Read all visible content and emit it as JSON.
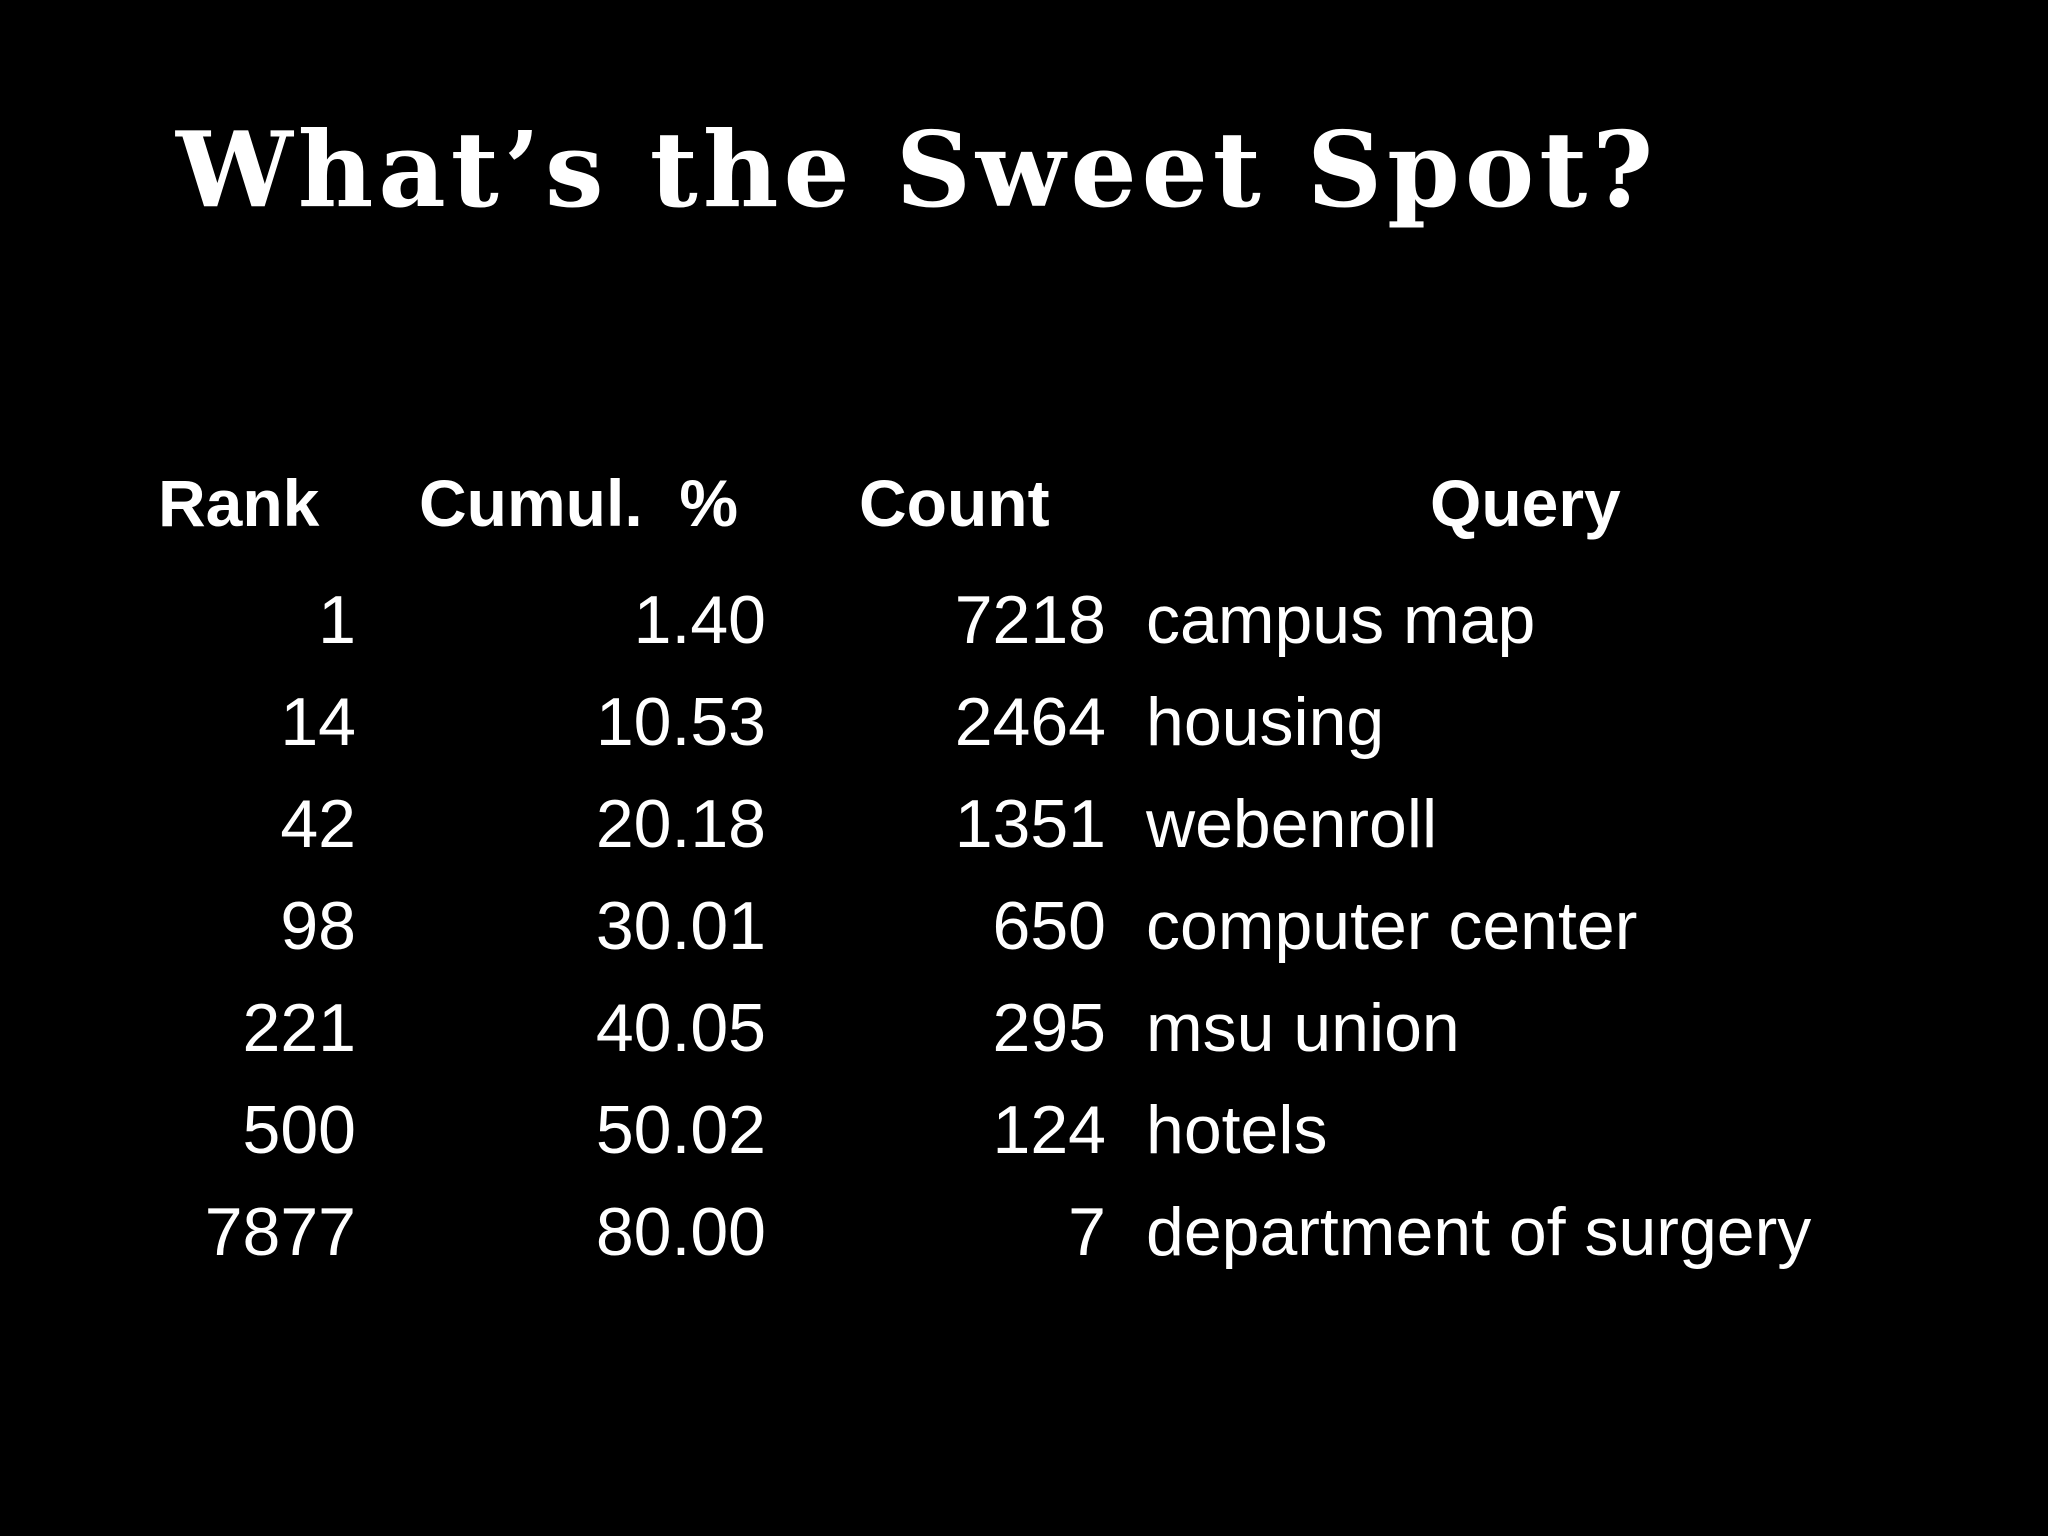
{
  "slide": {
    "title": "What’s the Sweet Spot?"
  },
  "table": {
    "headers": {
      "rank": "Rank",
      "cumul": "Cumul.  %",
      "count": "Count",
      "query": "Query"
    },
    "rows": [
      {
        "rank": "1",
        "cumul": "1.40",
        "count": "7218",
        "query": "campus map"
      },
      {
        "rank": "14",
        "cumul": "10.53",
        "count": "2464",
        "query": "housing"
      },
      {
        "rank": "42",
        "cumul": "20.18",
        "count": "1351",
        "query": "webenroll"
      },
      {
        "rank": "98",
        "cumul": "30.01",
        "count": "650",
        "query": "computer center"
      },
      {
        "rank": "221",
        "cumul": "40.05",
        "count": "295",
        "query": "msu union"
      },
      {
        "rank": "500",
        "cumul": "50.02",
        "count": "124",
        "query": "hotels"
      },
      {
        "rank": "7877",
        "cumul": "80.00",
        "count": "7",
        "query": "department of surgery"
      }
    ]
  },
  "colors": {
    "background": "#000000",
    "text": "#ffffff"
  }
}
